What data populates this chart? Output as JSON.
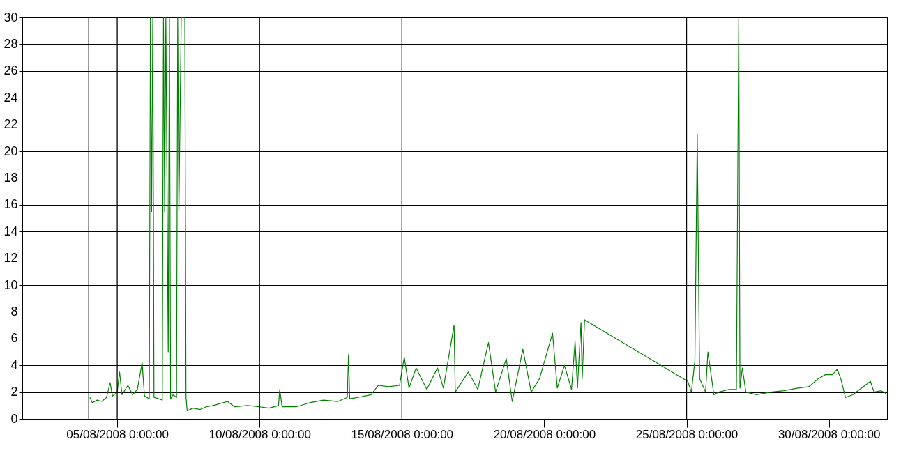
{
  "chart_data": {
    "type": "line",
    "x": [
      "2008-08-04T01:00",
      "2008-08-04T03:00",
      "2008-08-04T07:00",
      "2008-08-04T11:00",
      "2008-08-04T15:00",
      "2008-08-04T18:00",
      "2008-08-04T20:00",
      "2008-08-05T00:00",
      "2008-08-05T02:00",
      "2008-08-05T04:00",
      "2008-08-05T09:00",
      "2008-08-05T13:00",
      "2008-08-05T17:00",
      "2008-08-05T21:00",
      "2008-08-05T23:00",
      "2008-08-06T03:00",
      "2008-08-06T04:00",
      "2008-08-06T05:00",
      "2008-08-06T06:00",
      "2008-08-06T07:00",
      "2008-08-06T11:00",
      "2008-08-06T14:00",
      "2008-08-06T15:00",
      "2008-08-06T16:00",
      "2008-08-06T17:00",
      "2008-08-06T19:00",
      "2008-08-06T20:00",
      "2008-08-06T21:00",
      "2008-08-06T23:00",
      "2008-08-07T02:00",
      "2008-08-07T03:00",
      "2008-08-07T04:00",
      "2008-08-07T06:00",
      "2008-08-07T09:00",
      "2008-08-07T10:00",
      "2008-08-07T11:00",
      "2008-08-07T16:00",
      "2008-08-07T22:00",
      "2008-08-08T03:00",
      "2008-08-08T09:00",
      "2008-08-08T21:00",
      "2008-08-09T03:00",
      "2008-08-09T14:00",
      "2008-08-10T00:00",
      "2008-08-10T08:00",
      "2008-08-10T16:00",
      "2008-08-10T17:00",
      "2008-08-10T19:00",
      "2008-08-11T07:00",
      "2008-08-11T18:00",
      "2008-08-12T06:00",
      "2008-08-12T18:00",
      "2008-08-13T02:00",
      "2008-08-13T03:00",
      "2008-08-13T04:00",
      "2008-08-13T11:00",
      "2008-08-13T22:00",
      "2008-08-14T04:00",
      "2008-08-14T13:00",
      "2008-08-14T22:00",
      "2008-08-15T02:00",
      "2008-08-15T06:00",
      "2008-08-15T12:00",
      "2008-08-15T21:00",
      "2008-08-16T06:00",
      "2008-08-16T11:00",
      "2008-08-16T20:00",
      "2008-08-16T21:00",
      "2008-08-17T08:00",
      "2008-08-17T16:00",
      "2008-08-18T01:00",
      "2008-08-18T07:00",
      "2008-08-18T16:00",
      "2008-08-18T21:00",
      "2008-08-19T06:00",
      "2008-08-19T13:00",
      "2008-08-19T20:00",
      "2008-08-20T07:00",
      "2008-08-20T11:00",
      "2008-08-20T17:00",
      "2008-08-20T23:00",
      "2008-08-21T02:00",
      "2008-08-21T04:00",
      "2008-08-21T07:00",
      "2008-08-21T08:00",
      "2008-08-21T10:00",
      "2008-08-25T01:00",
      "2008-08-25T04:00",
      "2008-08-25T07:00",
      "2008-08-25T09:00",
      "2008-08-25T10:00",
      "2008-08-25T11:00",
      "2008-08-25T16:00",
      "2008-08-25T18:00",
      "2008-08-25T23:00",
      "2008-08-26T03:00",
      "2008-08-26T12:00",
      "2008-08-26T18:00",
      "2008-08-26T20:00",
      "2008-08-26T21:00",
      "2008-08-26T23:00",
      "2008-08-27T02:00",
      "2008-08-27T11:00",
      "2008-08-27T23:00",
      "2008-08-28T10:00",
      "2008-08-28T22:00",
      "2008-08-29T07:00",
      "2008-08-29T15:00",
      "2008-08-29T21:00",
      "2008-08-30T03:00",
      "2008-08-30T07:00",
      "2008-08-30T10:00",
      "2008-08-30T14:00",
      "2008-08-30T20:00",
      "2008-08-31T02:00",
      "2008-08-31T11:00",
      "2008-08-31T14:00",
      "2008-08-31T20:00",
      "2008-09-01T00:00"
    ],
    "series": [
      {
        "color": "#008000",
        "values": [
          1.6,
          1.2,
          1.4,
          1.3,
          1.6,
          2.7,
          1.7,
          2.0,
          3.5,
          1.8,
          2.5,
          1.8,
          2.2,
          4.2,
          1.7,
          1.5,
          30,
          15.5,
          30,
          1.6,
          1.5,
          1.4,
          30,
          15.5,
          30,
          5,
          30,
          1.5,
          1.8,
          1.6,
          30,
          15.5,
          30,
          30,
          1.6,
          0.6,
          0.8,
          0.7,
          0.9,
          1.0,
          1.3,
          0.9,
          1.0,
          0.9,
          0.8,
          1.0,
          2.2,
          0.9,
          0.9,
          1.2,
          1.4,
          1.3,
          1.6,
          4.8,
          1.5,
          1.6,
          1.8,
          2.5,
          2.4,
          2.5,
          4.6,
          2.3,
          3.8,
          2.2,
          3.8,
          2.3,
          7.0,
          2.0,
          3.5,
          2.2,
          5.7,
          2.0,
          4.5,
          1.3,
          5.2,
          2.0,
          3.0,
          6.4,
          2.3,
          4.0,
          2.2,
          5.8,
          2.3,
          7.2,
          3.0,
          7.4,
          2.8,
          2.0,
          4.3,
          21.3,
          11.7,
          3.0,
          2.0,
          5.0,
          1.8,
          2.0,
          2.2,
          2.2,
          30,
          2.3,
          3.8,
          2.0,
          1.8,
          2.0,
          2.1,
          2.3,
          2.4,
          3.0,
          3.3,
          3.3,
          3.7,
          3.0,
          1.6,
          1.8,
          2.2,
          2.8,
          2.0,
          2.1,
          1.9
        ]
      }
    ],
    "xlim": [
      "2008-08-01T16:00",
      "2008-09-01T01:00"
    ],
    "xticks": [
      {
        "value": "2008-08-05T00:00",
        "label": "05/08/2008 0:00:00"
      },
      {
        "value": "2008-08-10T00:00",
        "label": "10/08/2008 0:00:00"
      },
      {
        "value": "2008-08-15T00:00",
        "label": "15/08/2008 0:00:00"
      },
      {
        "value": "2008-08-20T00:00",
        "label": "20/08/2008 0:00:00"
      },
      {
        "value": "2008-08-25T00:00",
        "label": "25/08/2008 0:00:00"
      },
      {
        "value": "2008-08-30T00:00",
        "label": "30/08/2008 0:00:00"
      }
    ],
    "ylim": [
      0,
      30
    ],
    "yticks": [
      0,
      2,
      4,
      6,
      8,
      10,
      12,
      14,
      16,
      18,
      20,
      22,
      24,
      26,
      28,
      30
    ],
    "grid": "y",
    "ref_lines": [
      {
        "axis": "x",
        "value": "2008-08-04T00:00",
        "color": "#000000"
      },
      {
        "axis": "x",
        "value": "2008-08-05T00:00",
        "color": "#000000"
      },
      {
        "axis": "x",
        "value": "2008-08-10T00:00",
        "color": "#000000"
      },
      {
        "axis": "x",
        "value": "2008-08-15T00:00",
        "color": "#000000"
      },
      {
        "axis": "x",
        "value": "2008-08-25T00:00",
        "color": "#000000"
      }
    ]
  }
}
